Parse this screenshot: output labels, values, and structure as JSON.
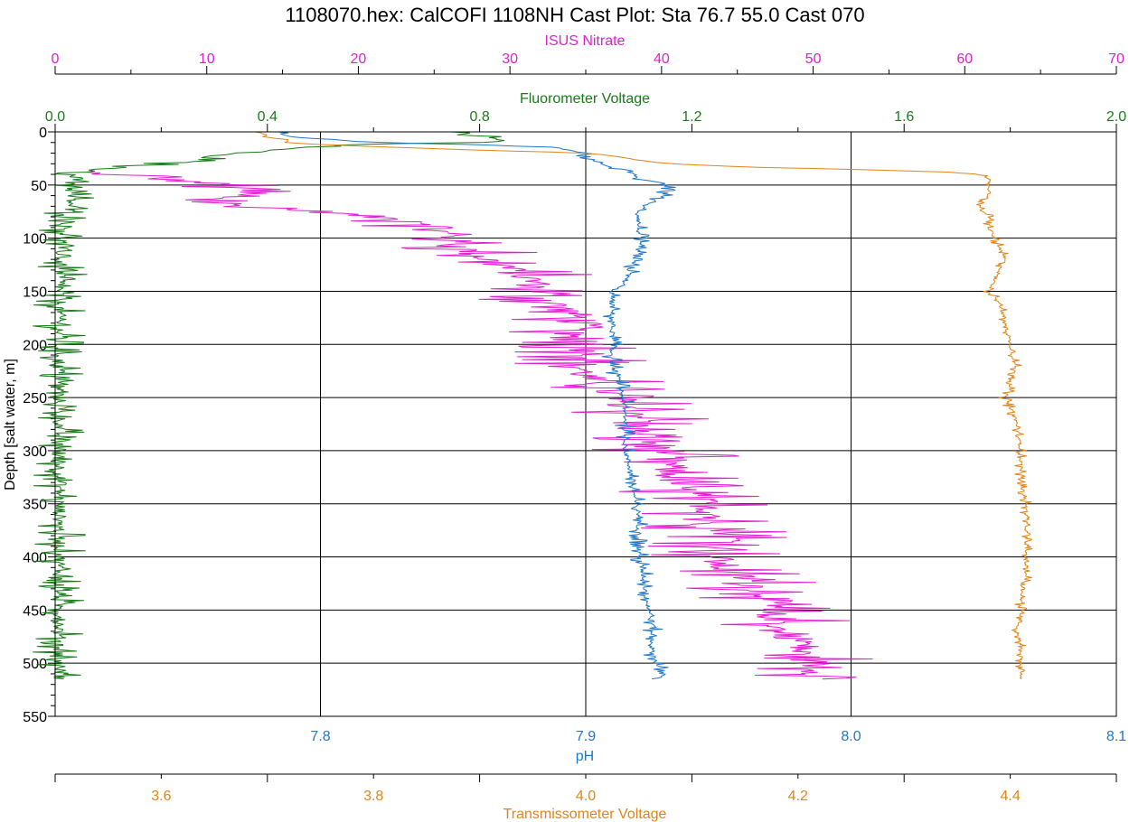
{
  "chart_data": {
    "type": "line",
    "title": "1108070.hex: CalCOFI 1108NH Cast Plot: Sta 76.7 55.0 Cast 070",
    "ylabel": "Depth [salt water, m]",
    "ylim": [
      0,
      550
    ],
    "y_ticks": [
      "0",
      "50",
      "100",
      "150",
      "200",
      "250",
      "300",
      "350",
      "400",
      "450",
      "500",
      "550"
    ],
    "y_inverted": true,
    "grid": true,
    "axes": {
      "nitrate": {
        "label": "ISUS Nitrate",
        "position": "top",
        "color": "#e020d0",
        "range": [
          0,
          70
        ],
        "ticks": [
          "0",
          "10",
          "20",
          "30",
          "40",
          "50",
          "60",
          "70"
        ]
      },
      "fluor": {
        "label": "Fluorometer Voltage",
        "position": "top",
        "color": "#1a7a1a",
        "range": [
          0,
          2
        ],
        "ticks": [
          "0.0",
          "0.4",
          "0.8",
          "1.2",
          "1.6",
          "2.0"
        ]
      },
      "ph": {
        "label": "pH",
        "position": "bottom",
        "color": "#1f77c8",
        "range": [
          7.7,
          8.1
        ],
        "ticks": [
          "7.8",
          "7.9",
          "8.0",
          "8.1"
        ]
      },
      "trans": {
        "label": "Transmissometer Voltage",
        "position": "bottom",
        "color": "#e08418",
        "range": [
          3.5,
          4.5
        ],
        "ticks": [
          "3.6",
          "3.8",
          "4.0",
          "4.2",
          "4.4"
        ]
      }
    },
    "series": [
      {
        "axis": "nitrate",
        "color": "#e020d0",
        "depth": [
          37,
          40,
          45,
          50,
          55,
          60,
          65,
          70,
          75,
          80,
          85,
          90,
          95,
          100,
          110,
          120,
          130,
          140,
          150,
          160,
          170,
          180,
          190,
          200,
          210,
          220,
          230,
          240,
          250,
          260,
          270,
          280,
          290,
          300,
          310,
          320,
          330,
          340,
          350,
          360,
          370,
          380,
          390,
          400,
          410,
          420,
          430,
          440,
          450,
          460,
          470,
          480,
          490,
          500,
          510,
          515
        ],
        "values": [
          1.0,
          3.5,
          7.5,
          11.5,
          12.5,
          11.5,
          11.0,
          12.0,
          17.5,
          21.0,
          24.5,
          25.5,
          25.5,
          26.0,
          27.0,
          28.5,
          30.0,
          31.5,
          31.8,
          32.5,
          34.0,
          35.0,
          33.5,
          34.5,
          35.5,
          34.5,
          35.0,
          36.0,
          37.0,
          38.0,
          39.0,
          38.0,
          39.0,
          40.5,
          40.5,
          40.5,
          41.0,
          41.5,
          43.0,
          43.5,
          43.0,
          45.0,
          44.0,
          43.5,
          44.0,
          45.5,
          46.5,
          47.5,
          46.5,
          48.0,
          47.5,
          49.5,
          49.0,
          50.0,
          50.5,
          50.5
        ],
        "jitter": 5
      },
      {
        "axis": "fluor",
        "color": "#1a7a1a",
        "depth": [
          0,
          2,
          5,
          8,
          10,
          12,
          15,
          18,
          20,
          22,
          25,
          28,
          30,
          33,
          36,
          40,
          45,
          50,
          55,
          60,
          65,
          70,
          75,
          80,
          90,
          100,
          110,
          120,
          130,
          140,
          150,
          200,
          250,
          300,
          350,
          400,
          450,
          500,
          515
        ],
        "values": [
          0.75,
          0.78,
          0.8,
          0.85,
          0.8,
          0.55,
          0.45,
          0.4,
          0.35,
          0.3,
          0.28,
          0.25,
          0.2,
          0.13,
          0.07,
          0.04,
          0.04,
          0.035,
          0.03,
          0.03,
          0.03,
          0.03,
          0.025,
          0.025,
          0.02,
          0.015,
          0.012,
          0.01,
          0.01,
          0.01,
          0.008,
          0.008,
          0.008,
          0.008,
          0.008,
          0.008,
          0.008,
          0.008,
          0.01
        ],
        "jitter": 0.05
      },
      {
        "axis": "ph",
        "color": "#1f77c8",
        "depth": [
          0,
          5,
          10,
          12,
          15,
          18,
          22,
          25,
          30,
          33,
          36,
          40,
          45,
          48,
          55,
          60,
          65,
          70,
          75,
          80,
          90,
          100,
          110,
          120,
          130,
          140,
          145,
          150,
          160,
          180,
          200,
          220,
          230,
          240,
          250,
          270,
          300,
          320,
          340,
          360,
          380,
          400,
          420,
          440,
          460,
          470,
          480,
          490,
          500,
          510,
          515
        ],
        "values": [
          7.783,
          7.79,
          7.82,
          7.86,
          7.89,
          7.895,
          7.9,
          7.9,
          7.905,
          7.91,
          7.915,
          7.918,
          7.92,
          7.93,
          7.93,
          7.93,
          7.925,
          7.922,
          7.92,
          7.92,
          7.92,
          7.92,
          7.92,
          7.918,
          7.917,
          7.915,
          7.913,
          7.91,
          7.91,
          7.91,
          7.91,
          7.91,
          7.912,
          7.913,
          7.914,
          7.915,
          7.915,
          7.917,
          7.918,
          7.92,
          7.92,
          7.92,
          7.922,
          7.923,
          7.925,
          7.925,
          7.925,
          7.925,
          7.927,
          7.928,
          7.928
        ],
        "jitter": 0.004
      },
      {
        "axis": "trans",
        "color": "#e08418",
        "depth": [
          0,
          3,
          5,
          8,
          10,
          12,
          15,
          18,
          20,
          22,
          25,
          28,
          30,
          33,
          36,
          38,
          40,
          45,
          50,
          55,
          60,
          70,
          80,
          90,
          100,
          110,
          120,
          130,
          140,
          150,
          160,
          180,
          200,
          220,
          240,
          250,
          270,
          300,
          330,
          350,
          380,
          400,
          420,
          440,
          460,
          470,
          480,
          490,
          500,
          510,
          515
        ],
        "values": [
          3.69,
          3.7,
          3.7,
          3.72,
          3.72,
          3.75,
          3.83,
          3.93,
          4.0,
          4.02,
          4.04,
          4.06,
          4.08,
          4.15,
          4.28,
          4.35,
          4.37,
          4.38,
          4.38,
          4.38,
          4.38,
          4.37,
          4.38,
          4.38,
          4.385,
          4.39,
          4.395,
          4.39,
          4.385,
          4.38,
          4.39,
          4.395,
          4.4,
          4.405,
          4.4,
          4.395,
          4.405,
          4.41,
          4.41,
          4.415,
          4.415,
          4.415,
          4.415,
          4.41,
          4.41,
          4.405,
          4.41,
          4.41,
          4.41,
          4.41,
          4.41
        ],
        "jitter": 0.006
      }
    ]
  }
}
